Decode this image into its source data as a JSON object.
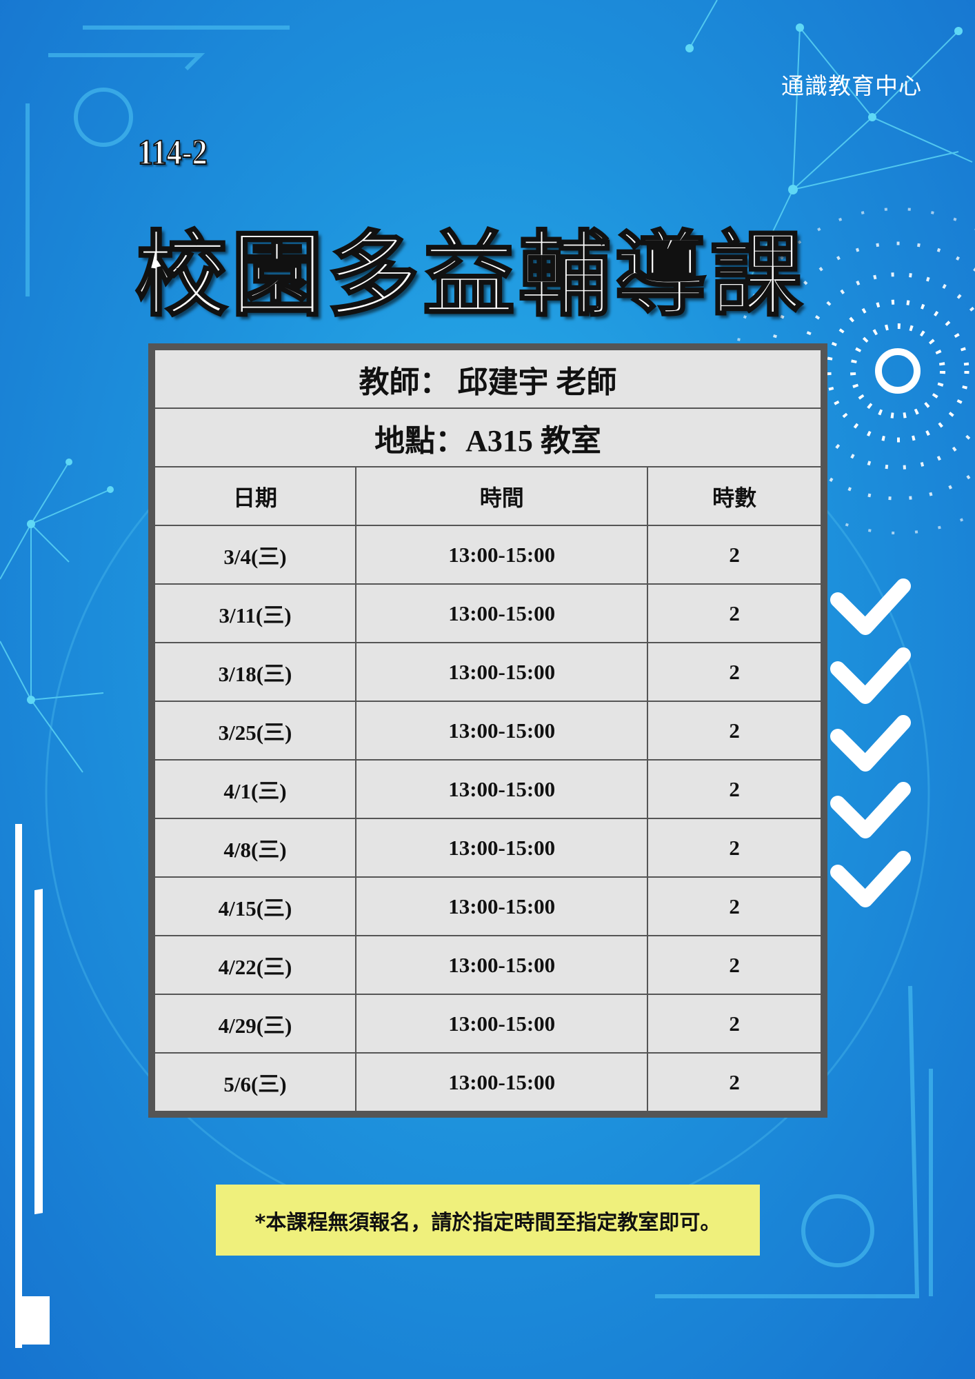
{
  "header": {
    "organization": "通識教育中心",
    "term": "114-2",
    "title": "校園多益輔導課"
  },
  "info": {
    "teacher": "教師：  邱建宇  老師",
    "location": "地點：A315 教室"
  },
  "table": {
    "columns": [
      "日期",
      "時間",
      "時數"
    ],
    "rows": [
      [
        "3/4(三)",
        "13:00-15:00",
        "2"
      ],
      [
        "3/11(三)",
        "13:00-15:00",
        "2"
      ],
      [
        "3/18(三)",
        "13:00-15:00",
        "2"
      ],
      [
        "3/25(三)",
        "13:00-15:00",
        "2"
      ],
      [
        "4/1(三)",
        "13:00-15:00",
        "2"
      ],
      [
        "4/8(三)",
        "13:00-15:00",
        "2"
      ],
      [
        "4/15(三)",
        "13:00-15:00",
        "2"
      ],
      [
        "4/22(三)",
        "13:00-15:00",
        "2"
      ],
      [
        "4/29(三)",
        "13:00-15:00",
        "2"
      ],
      [
        "5/6(三)",
        "13:00-15:00",
        "2"
      ]
    ]
  },
  "note": "*本課程無須報名，請於指定時間至指定教室即可。",
  "colors": {
    "background": "#1e93dd",
    "table_bg": "#e4e4e4",
    "table_border": "#555555",
    "note_bg": "#eff07c"
  }
}
